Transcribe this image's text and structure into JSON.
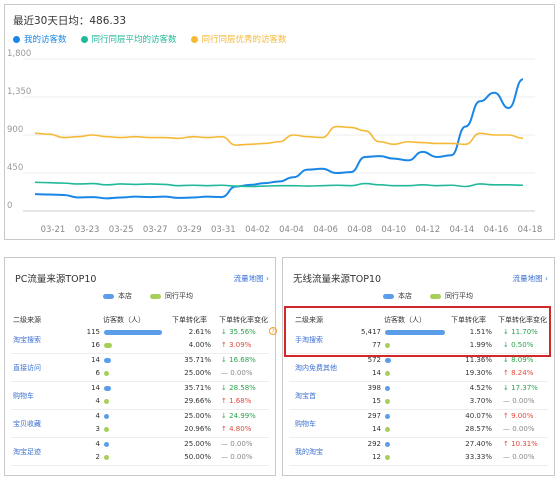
{
  "header": {
    "title": "最近30天日均：486.33"
  },
  "legend": [
    {
      "label": "我的访客数",
      "color": "#1a86e6"
    },
    {
      "label": "同行同层平均的访客数",
      "color": "#22b89a"
    },
    {
      "label": "同行同层优秀的访客数",
      "color": "#f5b936"
    }
  ],
  "chart_data": {
    "type": "line",
    "yticks": [
      "1,800",
      "1,350",
      "900",
      "450",
      "0"
    ],
    "xticks": [
      "03-21",
      "03-23",
      "03-25",
      "03-27",
      "03-29",
      "03-31",
      "04-02",
      "04-04",
      "04-06",
      "04-08",
      "04-10",
      "04-12",
      "04-14",
      "04-16",
      "04-18"
    ],
    "ylim": [
      0,
      1800
    ],
    "series": [
      {
        "name": "我的访客数",
        "color": "#1a86e6",
        "values": [
          200,
          195,
          190,
          160,
          165,
          150,
          160,
          170,
          165,
          170,
          155,
          160,
          170,
          165,
          290,
          310,
          330,
          350,
          400,
          490,
          500,
          450,
          460,
          640,
          650,
          620,
          600,
          700,
          640,
          660,
          1000,
          1300,
          1400,
          1220,
          1560
        ]
      },
      {
        "name": "同行同层平均的访客数",
        "color": "#22b89a",
        "values": [
          340,
          335,
          330,
          320,
          325,
          310,
          320,
          315,
          320,
          315,
          300,
          305,
          300,
          305,
          295,
          290,
          295,
          300,
          300,
          295,
          300,
          305,
          300,
          325,
          310,
          300,
          300,
          310,
          300,
          305,
          290,
          320,
          310,
          310,
          305
        ]
      },
      {
        "name": "同行同层优秀的访客数",
        "color": "#f5b936",
        "values": [
          920,
          910,
          870,
          880,
          900,
          880,
          870,
          880,
          870,
          870,
          860,
          880,
          870,
          880,
          780,
          790,
          800,
          820,
          900,
          880,
          870,
          1000,
          990,
          950,
          820,
          790,
          820,
          810,
          800,
          800,
          790,
          920,
          900,
          900,
          860
        ]
      }
    ]
  },
  "pc": {
    "title": "PC流量来源TOP10",
    "link": "流量地图",
    "legend_store": "本店",
    "legend_peer": "同行平均",
    "headers": {
      "source": "二级来源",
      "visitors": "访客数（人）",
      "conv": "下单转化率",
      "change": "下单转化率变化"
    },
    "rows": [
      {
        "source": "淘宝搜索",
        "store_num": "115",
        "store_frac": 1.0,
        "store_conv": "2.61%",
        "store_chg": "35.56%",
        "store_dir": "down",
        "peer_num": "16",
        "peer_frac": 0.14,
        "peer_conv": "4.00%",
        "peer_chg": "3.09%",
        "peer_dir": "up"
      },
      {
        "source": "直接访问",
        "store_num": "14",
        "store_frac": 0.12,
        "store_conv": "35.71%",
        "store_chg": "16.68%",
        "store_dir": "down",
        "peer_num": "6",
        "peer_frac": 0.05,
        "peer_conv": "25.00%",
        "peer_chg": "0.00%",
        "peer_dir": "flat"
      },
      {
        "source": "购物车",
        "store_num": "14",
        "store_frac": 0.12,
        "store_conv": "35.71%",
        "store_chg": "28.58%",
        "store_dir": "down",
        "peer_num": "4",
        "peer_frac": 0.035,
        "peer_conv": "29.66%",
        "peer_chg": "1.68%",
        "peer_dir": "up"
      },
      {
        "source": "宝贝收藏",
        "store_num": "4",
        "store_frac": 0.035,
        "store_conv": "25.00%",
        "store_chg": "24.99%",
        "store_dir": "down",
        "peer_num": "3",
        "peer_frac": 0.026,
        "peer_conv": "20.96%",
        "peer_chg": "4.80%",
        "peer_dir": "up"
      },
      {
        "source": "淘宝足迹",
        "store_num": "4",
        "store_frac": 0.035,
        "store_conv": "25.00%",
        "store_chg": "0.00%",
        "store_dir": "flat",
        "peer_num": "2",
        "peer_frac": 0.018,
        "peer_conv": "50.00%",
        "peer_chg": "0.00%",
        "peer_dir": "flat"
      }
    ]
  },
  "wl": {
    "title": "无线流量来源TOP10",
    "link": "流量地图",
    "legend_store": "本店",
    "legend_peer": "同行平均",
    "headers": {
      "source": "二级来源",
      "visitors": "访客数（人）",
      "conv": "下单转化率",
      "change": "下单转化率变化"
    },
    "rows": [
      {
        "source": "手淘搜索",
        "store_num": "5,417",
        "store_frac": 1.0,
        "store_conv": "1.51%",
        "store_chg": "11.70%",
        "store_dir": "down",
        "peer_num": "77",
        "peer_frac": 0.014,
        "peer_conv": "1.99%",
        "peer_chg": "0.50%",
        "peer_dir": "down"
      },
      {
        "source": "淘内免费其他",
        "store_num": "572",
        "store_frac": 0.105,
        "store_conv": "11.36%",
        "store_chg": "8.09%",
        "store_dir": "down",
        "peer_num": "14",
        "peer_frac": 0.003,
        "peer_conv": "19.30%",
        "peer_chg": "8.24%",
        "peer_dir": "up"
      },
      {
        "source": "淘宝首",
        "store_num": "398",
        "store_frac": 0.073,
        "store_conv": "4.52%",
        "store_chg": "17.37%",
        "store_dir": "down",
        "peer_num": "15",
        "peer_frac": 0.003,
        "peer_conv": "3.70%",
        "peer_chg": "0.00%",
        "peer_dir": "flat"
      },
      {
        "source": "购物车",
        "store_num": "297",
        "store_frac": 0.055,
        "store_conv": "40.07%",
        "store_chg": "9.00%",
        "store_dir": "up",
        "peer_num": "14",
        "peer_frac": 0.003,
        "peer_conv": "28.57%",
        "peer_chg": "0.00%",
        "peer_dir": "flat"
      },
      {
        "source": "我的淘宝",
        "store_num": "292",
        "store_frac": 0.054,
        "store_conv": "27.40%",
        "store_chg": "10.31%",
        "store_dir": "up",
        "peer_num": "12",
        "peer_frac": 0.002,
        "peer_conv": "33.33%",
        "peer_chg": "0.00%",
        "peer_dir": "flat"
      }
    ]
  }
}
